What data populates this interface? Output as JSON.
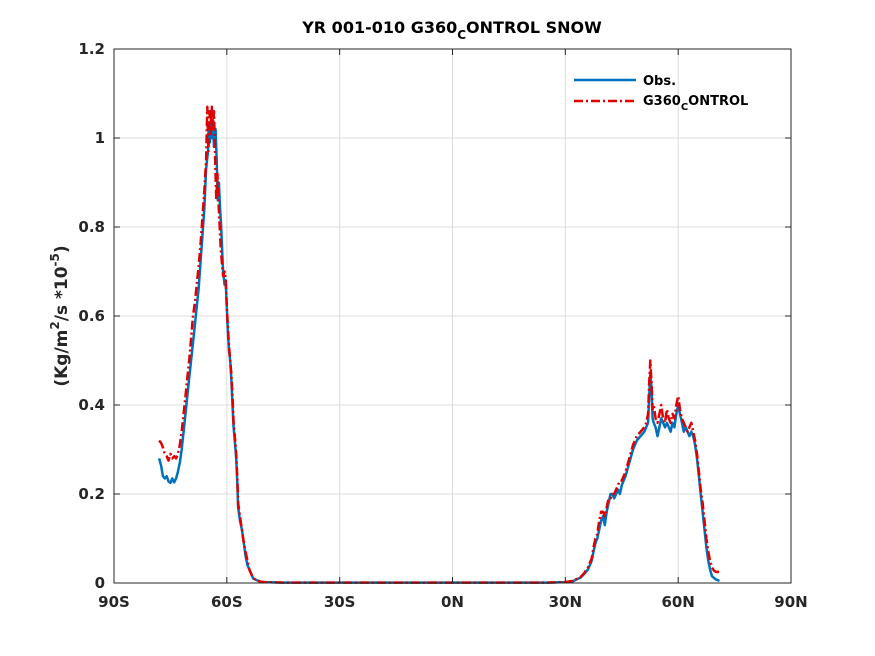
{
  "chart_data": {
    "type": "line",
    "title": {
      "main": "YR 001-010 G360",
      "sub": "C",
      "rest": "ONTROL SNOW"
    },
    "ylabel": {
      "p1": "(Kg/m",
      "sup1": "2",
      "p2": "/s *10",
      "sup2": "-5",
      "p3": ")"
    },
    "xlim": [
      -90,
      90
    ],
    "ylim": [
      0,
      1.2
    ],
    "xticks": [
      -90,
      -60,
      -30,
      0,
      30,
      60,
      90
    ],
    "xtick_labels": [
      "90S",
      "60S",
      "30S",
      "0N",
      "30N",
      "60N",
      "90N"
    ],
    "yticks": [
      0,
      0.2,
      0.4,
      0.6,
      0.8,
      1,
      1.2
    ],
    "ytick_labels": [
      "0",
      "0.2",
      "0.4",
      "0.6",
      "0.8",
      "1",
      "1.2"
    ],
    "grid": true,
    "legend_position": "top-right",
    "series": [
      {
        "name": "Obs.",
        "name_sub": "",
        "name_rest": "",
        "color": "#0072BD",
        "style": "solid",
        "points": [
          [
            -78,
            0.28
          ],
          [
            -77.5,
            0.265
          ],
          [
            -77,
            0.24
          ],
          [
            -76.5,
            0.235
          ],
          [
            -76,
            0.24
          ],
          [
            -75.5,
            0.228
          ],
          [
            -75,
            0.225
          ],
          [
            -74.5,
            0.235
          ],
          [
            -74,
            0.226
          ],
          [
            -73.5,
            0.235
          ],
          [
            -73,
            0.25
          ],
          [
            -72.5,
            0.27
          ],
          [
            -72,
            0.3
          ],
          [
            -71.5,
            0.34
          ],
          [
            -71,
            0.38
          ],
          [
            -70.5,
            0.42
          ],
          [
            -70,
            0.46
          ],
          [
            -69.5,
            0.5
          ],
          [
            -69,
            0.54
          ],
          [
            -68.5,
            0.58
          ],
          [
            -68,
            0.62
          ],
          [
            -67.5,
            0.66
          ],
          [
            -67,
            0.72
          ],
          [
            -66.5,
            0.78
          ],
          [
            -66,
            0.84
          ],
          [
            -65.5,
            0.93
          ],
          [
            -65,
            0.97
          ],
          [
            -64.8,
            1.03
          ],
          [
            -64.5,
            0.99
          ],
          [
            -64.2,
            1.05
          ],
          [
            -64,
            1.0
          ],
          [
            -63.7,
            1.04
          ],
          [
            -63.4,
            0.98
          ],
          [
            -63,
            1.02
          ],
          [
            -62.7,
            0.95
          ],
          [
            -62.4,
            0.86
          ],
          [
            -62.1,
            0.9
          ],
          [
            -61.8,
            0.84
          ],
          [
            -61.5,
            0.8
          ],
          [
            -61.2,
            0.74
          ],
          [
            -61,
            0.7
          ],
          [
            -60.6,
            0.67
          ],
          [
            -60.3,
            0.68
          ],
          [
            -60,
            0.62
          ],
          [
            -59.7,
            0.56
          ],
          [
            -59.4,
            0.52
          ],
          [
            -59.1,
            0.5
          ],
          [
            -58.8,
            0.46
          ],
          [
            -58.5,
            0.4
          ],
          [
            -58.2,
            0.35
          ],
          [
            -58,
            0.33
          ],
          [
            -57.5,
            0.28
          ],
          [
            -57.2,
            0.22
          ],
          [
            -57,
            0.17
          ],
          [
            -56.5,
            0.14
          ],
          [
            -56,
            0.12
          ],
          [
            -55.5,
            0.09
          ],
          [
            -55,
            0.06
          ],
          [
            -54.5,
            0.04
          ],
          [
            -54,
            0.03
          ],
          [
            -53.5,
            0.02
          ],
          [
            -53,
            0.01
          ],
          [
            -52,
            0.006
          ],
          [
            -51,
            0.003
          ],
          [
            -50,
            0.002
          ],
          [
            -45,
            0.001
          ],
          [
            -30,
            0.001
          ],
          [
            -15,
            0.001
          ],
          [
            0,
            0.001
          ],
          [
            15,
            0.001
          ],
          [
            25,
            0.001
          ],
          [
            30,
            0.002
          ],
          [
            32,
            0.004
          ],
          [
            33,
            0.008
          ],
          [
            34,
            0.012
          ],
          [
            35,
            0.02
          ],
          [
            36,
            0.03
          ],
          [
            37,
            0.05
          ],
          [
            37.5,
            0.07
          ],
          [
            38,
            0.09
          ],
          [
            38.5,
            0.1
          ],
          [
            39,
            0.12
          ],
          [
            39.5,
            0.14
          ],
          [
            40,
            0.15
          ],
          [
            40.5,
            0.13
          ],
          [
            41,
            0.16
          ],
          [
            41.5,
            0.18
          ],
          [
            42,
            0.2
          ],
          [
            42.5,
            0.2
          ],
          [
            43,
            0.19
          ],
          [
            43.5,
            0.2
          ],
          [
            44,
            0.21
          ],
          [
            44.5,
            0.2
          ],
          [
            45,
            0.22
          ],
          [
            46,
            0.24
          ],
          [
            47,
            0.27
          ],
          [
            48,
            0.3
          ],
          [
            49,
            0.32
          ],
          [
            50,
            0.33
          ],
          [
            51,
            0.34
          ],
          [
            51.5,
            0.35
          ],
          [
            52,
            0.36
          ],
          [
            52.3,
            0.42
          ],
          [
            52.6,
            0.47
          ],
          [
            52.9,
            0.44
          ],
          [
            53.2,
            0.37
          ],
          [
            53.5,
            0.36
          ],
          [
            54,
            0.35
          ],
          [
            54.5,
            0.33
          ],
          [
            55,
            0.35
          ],
          [
            55.5,
            0.37
          ],
          [
            56,
            0.36
          ],
          [
            56.5,
            0.35
          ],
          [
            57,
            0.36
          ],
          [
            57.5,
            0.35
          ],
          [
            58,
            0.34
          ],
          [
            58.5,
            0.36
          ],
          [
            59,
            0.35
          ],
          [
            59.5,
            0.38
          ],
          [
            60,
            0.4
          ],
          [
            60.5,
            0.38
          ],
          [
            61,
            0.36
          ],
          [
            61.5,
            0.34
          ],
          [
            62,
            0.35
          ],
          [
            62.5,
            0.34
          ],
          [
            63,
            0.33
          ],
          [
            63.5,
            0.34
          ],
          [
            64,
            0.33
          ],
          [
            64.5,
            0.31
          ],
          [
            65,
            0.28
          ],
          [
            65.5,
            0.24
          ],
          [
            66,
            0.2
          ],
          [
            66.5,
            0.16
          ],
          [
            67,
            0.12
          ],
          [
            67.5,
            0.08
          ],
          [
            68,
            0.05
          ],
          [
            68.5,
            0.03
          ],
          [
            69,
            0.015
          ],
          [
            70,
            0.008
          ],
          [
            71,
            0.005
          ]
        ]
      },
      {
        "name": "G360",
        "name_sub": "C",
        "name_rest": "ONTROL",
        "color": "#E00000",
        "style": "dashdot",
        "points": [
          [
            -78,
            0.32
          ],
          [
            -77.5,
            0.315
          ],
          [
            -77,
            0.305
          ],
          [
            -76.5,
            0.29
          ],
          [
            -76,
            0.285
          ],
          [
            -75.5,
            0.275
          ],
          [
            -75,
            0.29
          ],
          [
            -74.5,
            0.28
          ],
          [
            -74,
            0.285
          ],
          [
            -73.5,
            0.28
          ],
          [
            -73,
            0.29
          ],
          [
            -72.5,
            0.31
          ],
          [
            -72,
            0.34
          ],
          [
            -71.5,
            0.38
          ],
          [
            -71,
            0.42
          ],
          [
            -70.5,
            0.46
          ],
          [
            -70,
            0.5
          ],
          [
            -69.5,
            0.55
          ],
          [
            -69,
            0.6
          ],
          [
            -68.5,
            0.63
          ],
          [
            -68,
            0.67
          ],
          [
            -67.5,
            0.71
          ],
          [
            -67,
            0.76
          ],
          [
            -66.5,
            0.82
          ],
          [
            -66,
            0.88
          ],
          [
            -65.5,
            0.95
          ],
          [
            -65.2,
            1.07
          ],
          [
            -64.9,
            0.97
          ],
          [
            -64.6,
            1.06
          ],
          [
            -64.3,
            1.01
          ],
          [
            -64,
            1.07
          ],
          [
            -63.7,
            1.02
          ],
          [
            -63.4,
            1.06
          ],
          [
            -63.1,
            0.95
          ],
          [
            -62.8,
            0.86
          ],
          [
            -62.5,
            0.92
          ],
          [
            -62.2,
            0.85
          ],
          [
            -61.9,
            0.8
          ],
          [
            -61.6,
            0.75
          ],
          [
            -61.3,
            0.72
          ],
          [
            -61,
            0.69
          ],
          [
            -60.6,
            0.7
          ],
          [
            -60.3,
            0.68
          ],
          [
            -60,
            0.62
          ],
          [
            -59.7,
            0.57
          ],
          [
            -59.4,
            0.53
          ],
          [
            -59.1,
            0.5
          ],
          [
            -58.8,
            0.47
          ],
          [
            -58.5,
            0.42
          ],
          [
            -58.2,
            0.36
          ],
          [
            -58,
            0.34
          ],
          [
            -57.5,
            0.29
          ],
          [
            -57.2,
            0.23
          ],
          [
            -57,
            0.18
          ],
          [
            -56.5,
            0.15
          ],
          [
            -56,
            0.12
          ],
          [
            -55.5,
            0.09
          ],
          [
            -55,
            0.07
          ],
          [
            -54.5,
            0.05
          ],
          [
            -54,
            0.03
          ],
          [
            -53.5,
            0.02
          ],
          [
            -53,
            0.01
          ],
          [
            -52,
            0.006
          ],
          [
            -51,
            0.003
          ],
          [
            -50,
            0.002
          ],
          [
            -45,
            0.001
          ],
          [
            -30,
            0.001
          ],
          [
            -15,
            0.001
          ],
          [
            0,
            0.001
          ],
          [
            15,
            0.001
          ],
          [
            25,
            0.001
          ],
          [
            30,
            0.002
          ],
          [
            32,
            0.005
          ],
          [
            33,
            0.009
          ],
          [
            34,
            0.013
          ],
          [
            35,
            0.022
          ],
          [
            36,
            0.035
          ],
          [
            37,
            0.055
          ],
          [
            37.5,
            0.08
          ],
          [
            38,
            0.1
          ],
          [
            38.5,
            0.11
          ],
          [
            39,
            0.14
          ],
          [
            39.5,
            0.16
          ],
          [
            40,
            0.16
          ],
          [
            40.5,
            0.15
          ],
          [
            41,
            0.17
          ],
          [
            41.5,
            0.19
          ],
          [
            42,
            0.19
          ],
          [
            42.5,
            0.2
          ],
          [
            43,
            0.2
          ],
          [
            43.5,
            0.21
          ],
          [
            44,
            0.22
          ],
          [
            44.5,
            0.23
          ],
          [
            45,
            0.23
          ],
          [
            46,
            0.25
          ],
          [
            47,
            0.28
          ],
          [
            48,
            0.31
          ],
          [
            49,
            0.33
          ],
          [
            50,
            0.34
          ],
          [
            51,
            0.35
          ],
          [
            51.5,
            0.36
          ],
          [
            52,
            0.38
          ],
          [
            52.3,
            0.45
          ],
          [
            52.6,
            0.5
          ],
          [
            52.9,
            0.45
          ],
          [
            53.2,
            0.39
          ],
          [
            53.5,
            0.4
          ],
          [
            54,
            0.37
          ],
          [
            54.5,
            0.36
          ],
          [
            55,
            0.38
          ],
          [
            55.5,
            0.4
          ],
          [
            56,
            0.37
          ],
          [
            56.5,
            0.36
          ],
          [
            57,
            0.39
          ],
          [
            57.5,
            0.37
          ],
          [
            58,
            0.36
          ],
          [
            58.5,
            0.38
          ],
          [
            59,
            0.37
          ],
          [
            59.5,
            0.4
          ],
          [
            60,
            0.42
          ],
          [
            60.5,
            0.39
          ],
          [
            61,
            0.37
          ],
          [
            61.5,
            0.36
          ],
          [
            62,
            0.35
          ],
          [
            62.5,
            0.34
          ],
          [
            63,
            0.35
          ],
          [
            63.5,
            0.36
          ],
          [
            64,
            0.34
          ],
          [
            64.5,
            0.32
          ],
          [
            65,
            0.29
          ],
          [
            65.5,
            0.25
          ],
          [
            66,
            0.21
          ],
          [
            66.5,
            0.18
          ],
          [
            67,
            0.14
          ],
          [
            67.5,
            0.1
          ],
          [
            68,
            0.07
          ],
          [
            68.5,
            0.05
          ],
          [
            69,
            0.035
          ],
          [
            69.5,
            0.028
          ],
          [
            70,
            0.025
          ],
          [
            71,
            0.025
          ]
        ]
      }
    ]
  }
}
